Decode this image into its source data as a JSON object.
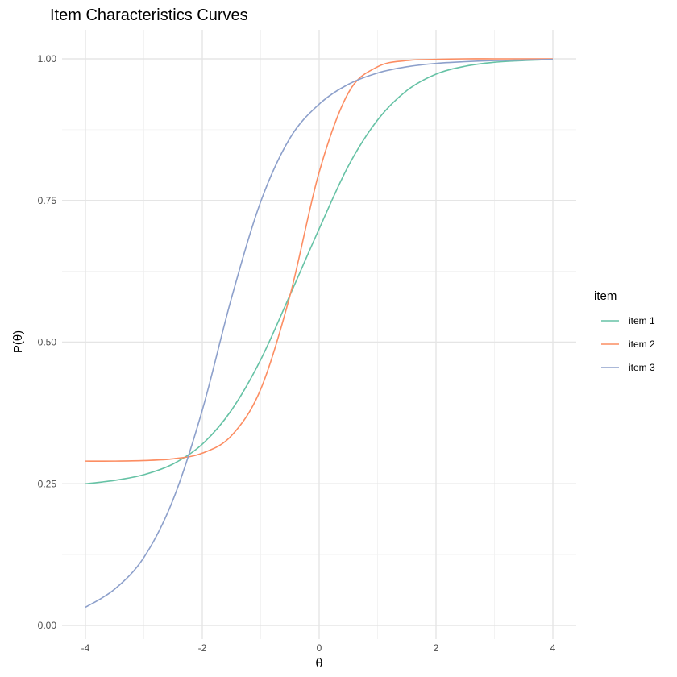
{
  "chart_data": {
    "type": "line",
    "title": "Item Characteristics Curves",
    "xlabel": "θ",
    "ylabel": "P(θ)",
    "xlim": [
      -4,
      4
    ],
    "ylim": [
      0,
      1
    ],
    "x_ticks": [
      -4,
      -2,
      0,
      2,
      4
    ],
    "x_tick_labels": [
      "-4",
      "-2",
      "0",
      "2",
      "4"
    ],
    "y_ticks": [
      0,
      0.25,
      0.5,
      0.75,
      1
    ],
    "y_tick_labels": [
      "0.00",
      "0.25",
      "0.50",
      "0.75",
      "1.00"
    ],
    "grid": true,
    "legend": {
      "title": "item",
      "position": "right"
    },
    "series": [
      {
        "name": "item 1",
        "color": "#66c2a5",
        "x": [
          -4,
          -3.5,
          -3,
          -2.5,
          -2,
          -1.5,
          -1,
          -0.5,
          0,
          0.5,
          1,
          1.5,
          2,
          2.5,
          3,
          3.5,
          4
        ],
        "y": [
          0.25,
          0.256,
          0.266,
          0.285,
          0.32,
          0.38,
          0.469,
          0.583,
          0.7,
          0.811,
          0.892,
          0.944,
          0.973,
          0.987,
          0.994,
          0.997,
          0.999
        ]
      },
      {
        "name": "item 2",
        "color": "#fc8d62",
        "x": [
          -4,
          -3.5,
          -3,
          -2.5,
          -2,
          -1.5,
          -1,
          -0.5,
          0,
          0.5,
          1,
          1.5,
          2,
          2.5,
          3,
          3.5,
          4
        ],
        "y": [
          0.29,
          0.29,
          0.291,
          0.294,
          0.304,
          0.335,
          0.417,
          0.582,
          0.8,
          0.94,
          0.986,
          0.997,
          0.999,
          1.0,
          1.0,
          1.0,
          1.0
        ]
      },
      {
        "name": "item 3",
        "color": "#8da0cb",
        "x": [
          -4,
          -3.5,
          -3,
          -2.5,
          -2,
          -1.5,
          -1,
          -0.5,
          0,
          0.5,
          1,
          1.5,
          2,
          2.5,
          3,
          3.5,
          4
        ],
        "y": [
          0.032,
          0.064,
          0.12,
          0.222,
          0.38,
          0.578,
          0.748,
          0.86,
          0.92,
          0.955,
          0.975,
          0.986,
          0.992,
          0.995,
          0.997,
          0.998,
          0.999
        ]
      }
    ]
  }
}
